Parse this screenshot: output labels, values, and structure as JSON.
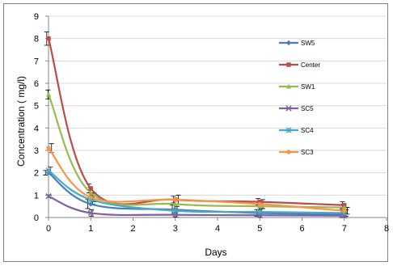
{
  "chart_data": {
    "type": "line",
    "xlabel": "Days",
    "ylabel": "Concentration ( mg/l)",
    "xlim": [
      0,
      8
    ],
    "ylim": [
      0,
      9
    ],
    "xticks": [
      "0",
      "1",
      "2",
      "3",
      "4",
      "5",
      "6",
      "7",
      "8"
    ],
    "yticks": [
      "0",
      "1",
      "2",
      "3",
      "4",
      "5",
      "6",
      "7",
      "8",
      "9"
    ],
    "grid": "horizontal",
    "legend_position": "right",
    "x": [
      0,
      1,
      3,
      5,
      7
    ],
    "series": [
      {
        "name": "SW5",
        "color": "#4a7ebb",
        "marker": "diamond",
        "values": [
          2.0,
          0.6,
          0.35,
          0.2,
          0.15
        ],
        "errors": [
          0.1,
          0.2,
          0.2,
          0.15,
          0.2
        ]
      },
      {
        "name": "Center",
        "color": "#be4b48",
        "marker": "square",
        "values": [
          8.0,
          1.3,
          0.8,
          0.7,
          0.55
        ],
        "errors": [
          0.3,
          0.2,
          0.15,
          0.15,
          0.15
        ]
      },
      {
        "name": "SW1",
        "color": "#98b954",
        "marker": "triangle",
        "values": [
          5.5,
          1.1,
          0.6,
          0.5,
          0.45
        ],
        "errors": [
          0.2,
          0.25,
          0.2,
          0.15,
          0.15
        ]
      },
      {
        "name": "SC5",
        "color": "#7d60a0",
        "marker": "x",
        "values": [
          0.95,
          0.2,
          0.12,
          0.1,
          0.08
        ],
        "errors": [
          0.05,
          0.15,
          0.1,
          0.1,
          0.1
        ]
      },
      {
        "name": "SC4",
        "color": "#46aac5",
        "marker": "star",
        "values": [
          2.1,
          0.8,
          0.3,
          0.25,
          0.2
        ],
        "errors": [
          0.15,
          0.2,
          0.2,
          0.15,
          0.15
        ]
      },
      {
        "name": "SC3",
        "color": "#f79646",
        "marker": "circle",
        "values": [
          3.1,
          0.9,
          0.8,
          0.6,
          0.3
        ],
        "errors": [
          0.2,
          0.2,
          0.2,
          0.2,
          0.15
        ]
      }
    ]
  }
}
